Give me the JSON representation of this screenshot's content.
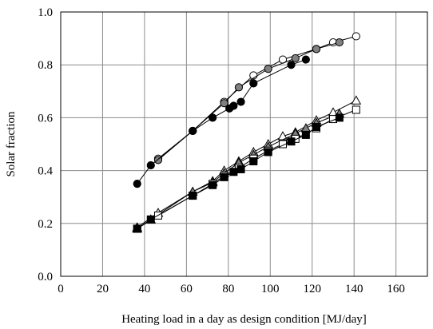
{
  "chart_data": {
    "type": "scatter",
    "title": "",
    "xlabel": "Heating load in a day as design condition [MJ/day]",
    "ylabel": "Solar fraction",
    "xlim": [
      0,
      175
    ],
    "ylim": [
      0.0,
      1.0
    ],
    "x_ticks": [
      "0",
      "20",
      "40",
      "60",
      "80",
      "100",
      "120",
      "140",
      "160"
    ],
    "y_ticks": [
      "0.0",
      "0.2",
      "0.4",
      "0.6",
      "0.8",
      "1.0"
    ],
    "grid": true,
    "legend": "none",
    "series": [
      {
        "marker": "circle",
        "fill": "#ffffff",
        "points": [
          [
            46.5,
            0.445
          ],
          [
            63,
            0.55
          ],
          [
            78,
            0.66
          ],
          [
            92,
            0.76
          ],
          [
            106,
            0.82
          ],
          [
            122,
            0.86
          ],
          [
            130,
            0.885
          ],
          [
            141,
            0.908
          ]
        ]
      },
      {
        "marker": "circle",
        "fill": "#808080",
        "points": [
          [
            46.5,
            0.44
          ],
          [
            63,
            0.55
          ],
          [
            78,
            0.655
          ],
          [
            85,
            0.715
          ],
          [
            99,
            0.785
          ],
          [
            112,
            0.825
          ],
          [
            122,
            0.86
          ],
          [
            133,
            0.885
          ]
        ]
      },
      {
        "marker": "circle",
        "fill": "#000000",
        "points": [
          [
            36.5,
            0.35
          ],
          [
            43,
            0.42
          ],
          [
            63,
            0.55
          ],
          [
            72.5,
            0.6
          ],
          [
            80.5,
            0.635
          ],
          [
            82.5,
            0.645
          ],
          [
            86,
            0.66
          ],
          [
            92,
            0.73
          ],
          [
            110,
            0.8
          ],
          [
            117,
            0.82
          ]
        ]
      },
      {
        "marker": "triangle",
        "fill": "#ffffff",
        "points": [
          [
            36.5,
            0.185
          ],
          [
            46.5,
            0.24
          ],
          [
            63,
            0.32
          ],
          [
            72.5,
            0.36
          ],
          [
            78,
            0.4
          ],
          [
            85,
            0.435
          ],
          [
            92,
            0.47
          ],
          [
            99,
            0.5
          ],
          [
            106,
            0.53
          ],
          [
            112,
            0.545
          ],
          [
            122,
            0.59
          ],
          [
            130,
            0.62
          ],
          [
            141,
            0.665
          ]
        ]
      },
      {
        "marker": "triangle",
        "fill": "#808080",
        "points": [
          [
            36.5,
            0.18
          ],
          [
            43,
            0.215
          ],
          [
            63,
            0.32
          ],
          [
            72.5,
            0.355
          ],
          [
            78,
            0.39
          ],
          [
            85,
            0.43
          ],
          [
            92,
            0.46
          ],
          [
            99,
            0.49
          ],
          [
            112,
            0.54
          ],
          [
            117,
            0.56
          ],
          [
            122,
            0.58
          ],
          [
            133,
            0.615
          ]
        ]
      },
      {
        "marker": "square",
        "fill": "#ffffff",
        "points": [
          [
            36.5,
            0.18
          ],
          [
            46.5,
            0.23
          ],
          [
            63,
            0.305
          ],
          [
            72.5,
            0.35
          ],
          [
            78,
            0.38
          ],
          [
            85,
            0.41
          ],
          [
            92,
            0.445
          ],
          [
            99,
            0.475
          ],
          [
            106,
            0.5
          ],
          [
            112,
            0.52
          ],
          [
            122,
            0.56
          ],
          [
            130,
            0.595
          ],
          [
            141,
            0.63
          ]
        ]
      },
      {
        "marker": "square",
        "fill": "#000000",
        "points": [
          [
            36.5,
            0.18
          ],
          [
            43,
            0.215
          ],
          [
            63,
            0.305
          ],
          [
            72.5,
            0.345
          ],
          [
            78,
            0.375
          ],
          [
            82.5,
            0.395
          ],
          [
            86,
            0.405
          ],
          [
            92,
            0.435
          ],
          [
            99,
            0.47
          ],
          [
            110,
            0.51
          ],
          [
            117,
            0.535
          ],
          [
            122,
            0.565
          ],
          [
            133,
            0.6
          ]
        ]
      }
    ]
  }
}
